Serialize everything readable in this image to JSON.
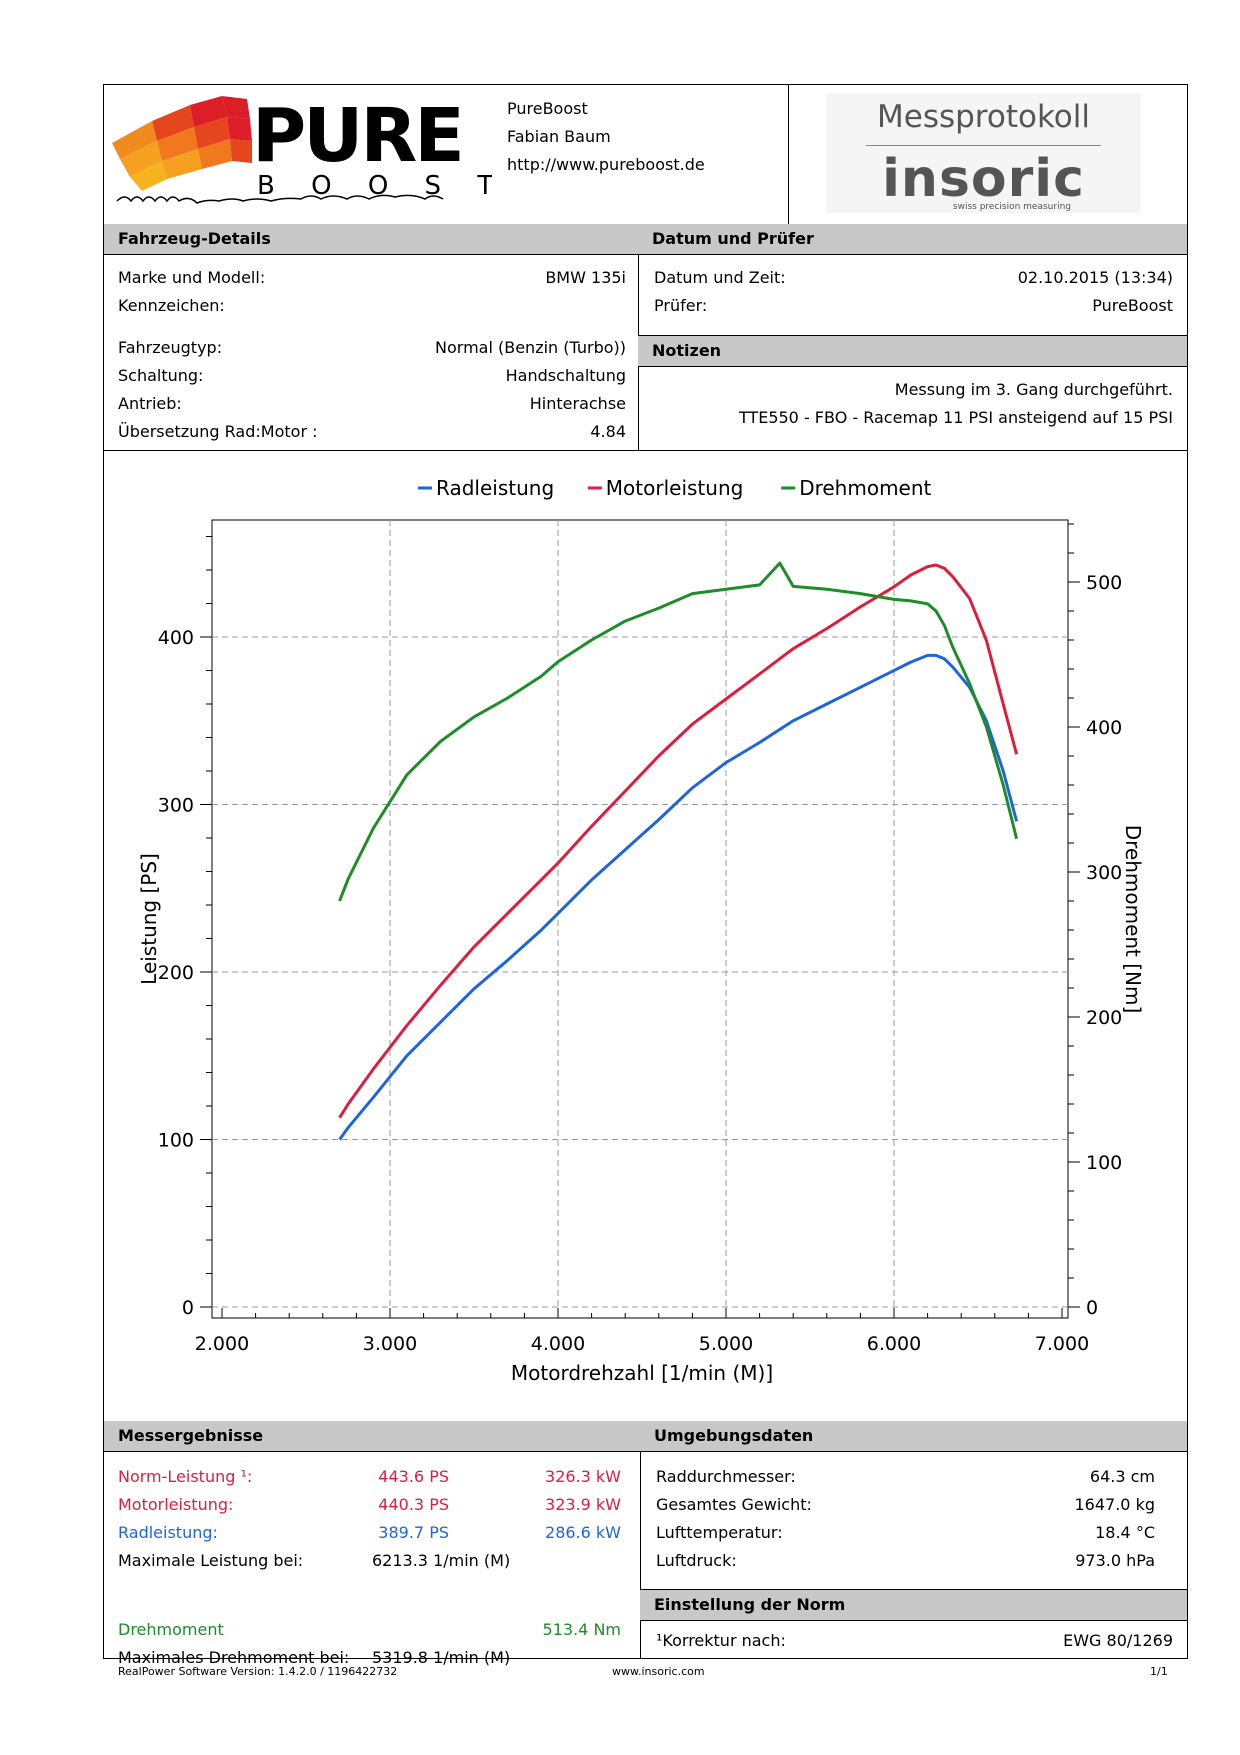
{
  "header": {
    "company": "PureBoost",
    "person": "Fabian Baum",
    "url": "http://www.pureboost.de",
    "logo_text_top": "PURE",
    "logo_text_bottom": "B O O S T",
    "logo_signature": "www.pureboost.de",
    "protocol_title": "Messprotokoll",
    "brand": "insoric",
    "brand_tagline": "swiss precision measuring"
  },
  "vehicle": {
    "title": "Fahrzeug-Details",
    "rows": [
      {
        "label": "Marke und Modell:",
        "value": "BMW 135i"
      },
      {
        "label": "Kennzeichen:",
        "value": ""
      },
      {
        "label": "Fahrzeugtyp:",
        "value": "Normal (Benzin (Turbo))"
      },
      {
        "label": "Schaltung:",
        "value": "Handschaltung"
      },
      {
        "label": "Antrieb:",
        "value": "Hinterachse"
      },
      {
        "label": "Übersetzung Rad:Motor :",
        "value": "4.84"
      }
    ]
  },
  "date": {
    "title": "Datum und Prüfer",
    "rows": [
      {
        "label": "Datum und Zeit:",
        "value": "02.10.2015 (13:34)"
      },
      {
        "label": "Prüfer:",
        "value": "PureBoost"
      }
    ]
  },
  "notes": {
    "title": "Notizen",
    "lines": [
      "Messung im 3. Gang durchgeführt.",
      "TTE550 - FBO - Racemap 11 PSI ansteigend auf 15 PSI"
    ]
  },
  "chart_data": {
    "type": "line",
    "xlabel": "Motordrehzahl [1/min (M)]",
    "ylabel": "Leistung [PS]",
    "y2label": "Drehmoment [Nm]",
    "xlim": [
      2000,
      7000
    ],
    "ylim": [
      0,
      460
    ],
    "y2lim": [
      0,
      500
    ],
    "x_ticks": [
      "2.000",
      "3.000",
      "4.000",
      "5.000",
      "6.000",
      "7.000"
    ],
    "y_ticks": [
      "0",
      "100",
      "200",
      "300",
      "400"
    ],
    "y2_ticks": [
      "0",
      "100",
      "200",
      "300",
      "400",
      "500"
    ],
    "grid": true,
    "legend_position": "top-center",
    "series": [
      {
        "name": "Radleistung",
        "color": "#1e64dc",
        "axis": "left",
        "x": [
          2700,
          2750,
          2900,
          3100,
          3300,
          3500,
          3700,
          3900,
          4000,
          4200,
          4400,
          4600,
          4800,
          5000,
          5200,
          5400,
          5600,
          5800,
          6000,
          6100,
          6200,
          6250,
          6300,
          6350,
          6450,
          6550,
          6650,
          6730
        ],
        "values": [
          100,
          107,
          125,
          150,
          170,
          190,
          207,
          225,
          235,
          255,
          273,
          291,
          310,
          325,
          337,
          350,
          360,
          370,
          380,
          385,
          389,
          389,
          387,
          382,
          370,
          350,
          320,
          290
        ]
      },
      {
        "name": "Motorleistung",
        "color": "#dc1e3c",
        "axis": "left",
        "x": [
          2700,
          2750,
          2900,
          3100,
          3300,
          3500,
          3700,
          3900,
          4000,
          4200,
          4400,
          4600,
          4800,
          5000,
          5200,
          5400,
          5600,
          5800,
          6000,
          6100,
          6200,
          6250,
          6300,
          6350,
          6450,
          6550,
          6650,
          6730
        ],
        "values": [
          113,
          121,
          142,
          168,
          192,
          215,
          235,
          255,
          265,
          287,
          308,
          329,
          348,
          363,
          378,
          393,
          405,
          418,
          430,
          437,
          442,
          443,
          441,
          436,
          423,
          398,
          360,
          330
        ]
      },
      {
        "name": "Drehmoment",
        "color": "#1e8c28",
        "axis": "right",
        "x": [
          2700,
          2750,
          2900,
          3100,
          3300,
          3500,
          3700,
          3900,
          4000,
          4200,
          4400,
          4600,
          4800,
          5000,
          5200,
          5320,
          5400,
          5600,
          5800,
          6000,
          6100,
          6200,
          6250,
          6300,
          6350,
          6450,
          6550,
          6650,
          6730
        ],
        "values": [
          280,
          295,
          330,
          367,
          390,
          407,
          420,
          435,
          445,
          460,
          473,
          482,
          492,
          495,
          498,
          513,
          497,
          495,
          492,
          488,
          487,
          485,
          480,
          470,
          455,
          430,
          400,
          360,
          323
        ]
      }
    ]
  },
  "results": {
    "title": "Messergebnisse",
    "rows": [
      {
        "label": "Norm-Leistung ¹:",
        "ps": "443.6 PS",
        "kw": "326.3 kW",
        "color": "#dc1e3c"
      },
      {
        "label": "Motorleistung:",
        "ps": "440.3 PS",
        "kw": "323.9 kW",
        "color": "#dc1e3c"
      },
      {
        "label": "Radleistung:",
        "ps": "389.7 PS",
        "kw": "286.6 kW",
        "color": "#1e64dc"
      }
    ],
    "max_power_label": "Maximale Leistung bei:",
    "max_power_value": "6213.3 1/min (M)",
    "torque_label": "Drehmoment",
    "torque_value": "513.4 Nm",
    "max_torque_label": "Maximales Drehmoment bei:",
    "max_torque_value": "5319.8 1/min (M)"
  },
  "env": {
    "title": "Umgebungsdaten",
    "rows": [
      {
        "label": "Raddurchmesser:",
        "value": "64.3 cm"
      },
      {
        "label": "Gesamtes Gewicht:",
        "value": "1647.0 kg"
      },
      {
        "label": "Lufttemperatur:",
        "value": "18.4 °C"
      },
      {
        "label": "Luftdruck:",
        "value": "973.0 hPa"
      }
    ]
  },
  "norm": {
    "title": "Einstellung der Norm",
    "label": "¹Korrektur nach:",
    "value": "EWG 80/1269"
  },
  "footer": {
    "version": "RealPower Software Version: 1.4.2.0 / 1196422732",
    "site": "www.insoric.com",
    "page": "1/1"
  }
}
